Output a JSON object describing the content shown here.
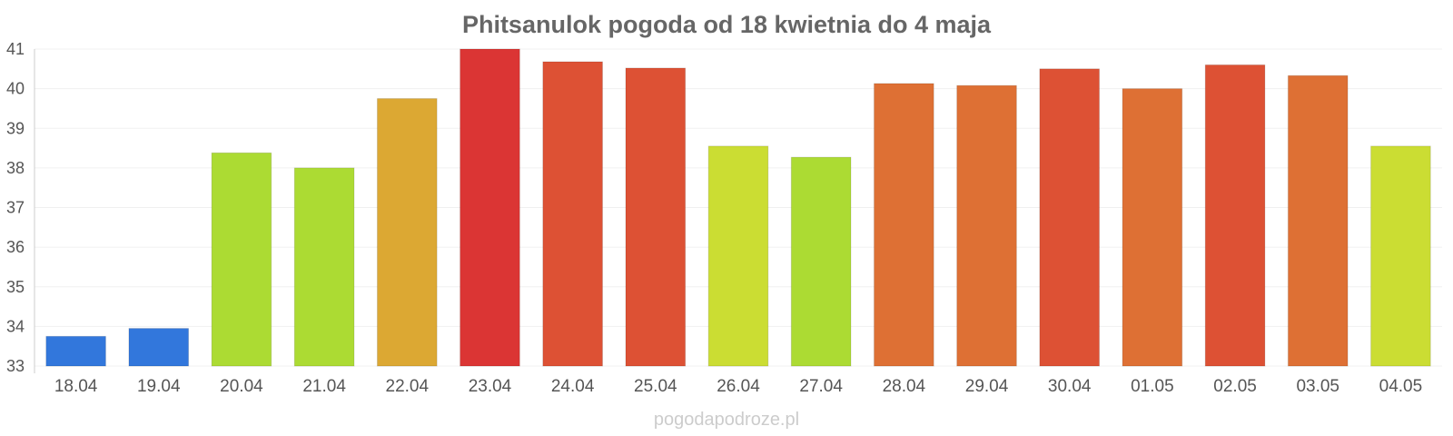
{
  "chart_data": {
    "type": "bar",
    "title": "Phitsanulok pogoda od 18 kwietnia do 4 maja",
    "xlabel": "",
    "ylabel": "",
    "ylim": [
      33,
      41
    ],
    "yticks": [
      "33",
      "34",
      "35",
      "36",
      "37",
      "38",
      "39",
      "40",
      "41"
    ],
    "grid": true,
    "legend": "none",
    "categories": [
      "18.04",
      "19.04",
      "20.04",
      "21.04",
      "22.04",
      "23.04",
      "24.04",
      "25.04",
      "26.04",
      "27.04",
      "28.04",
      "29.04",
      "30.04",
      "01.05",
      "02.05",
      "03.05",
      "04.05"
    ],
    "values": [
      33.75,
      33.95,
      38.38,
      38.0,
      39.75,
      41.0,
      40.68,
      40.52,
      38.55,
      38.27,
      40.13,
      40.08,
      40.5,
      40.0,
      40.6,
      40.33,
      38.55
    ],
    "colors": [
      "#3277dc",
      "#3277dc",
      "#acdb33",
      "#acdb33",
      "#dca833",
      "#db3534",
      "#dd5134",
      "#dd5134",
      "#cbdd33",
      "#acdb33",
      "#de7034",
      "#de7034",
      "#dd5134",
      "#de7034",
      "#dd5134",
      "#de7034",
      "#cbdd33"
    ]
  },
  "watermark": "pogodapodroze.pl"
}
